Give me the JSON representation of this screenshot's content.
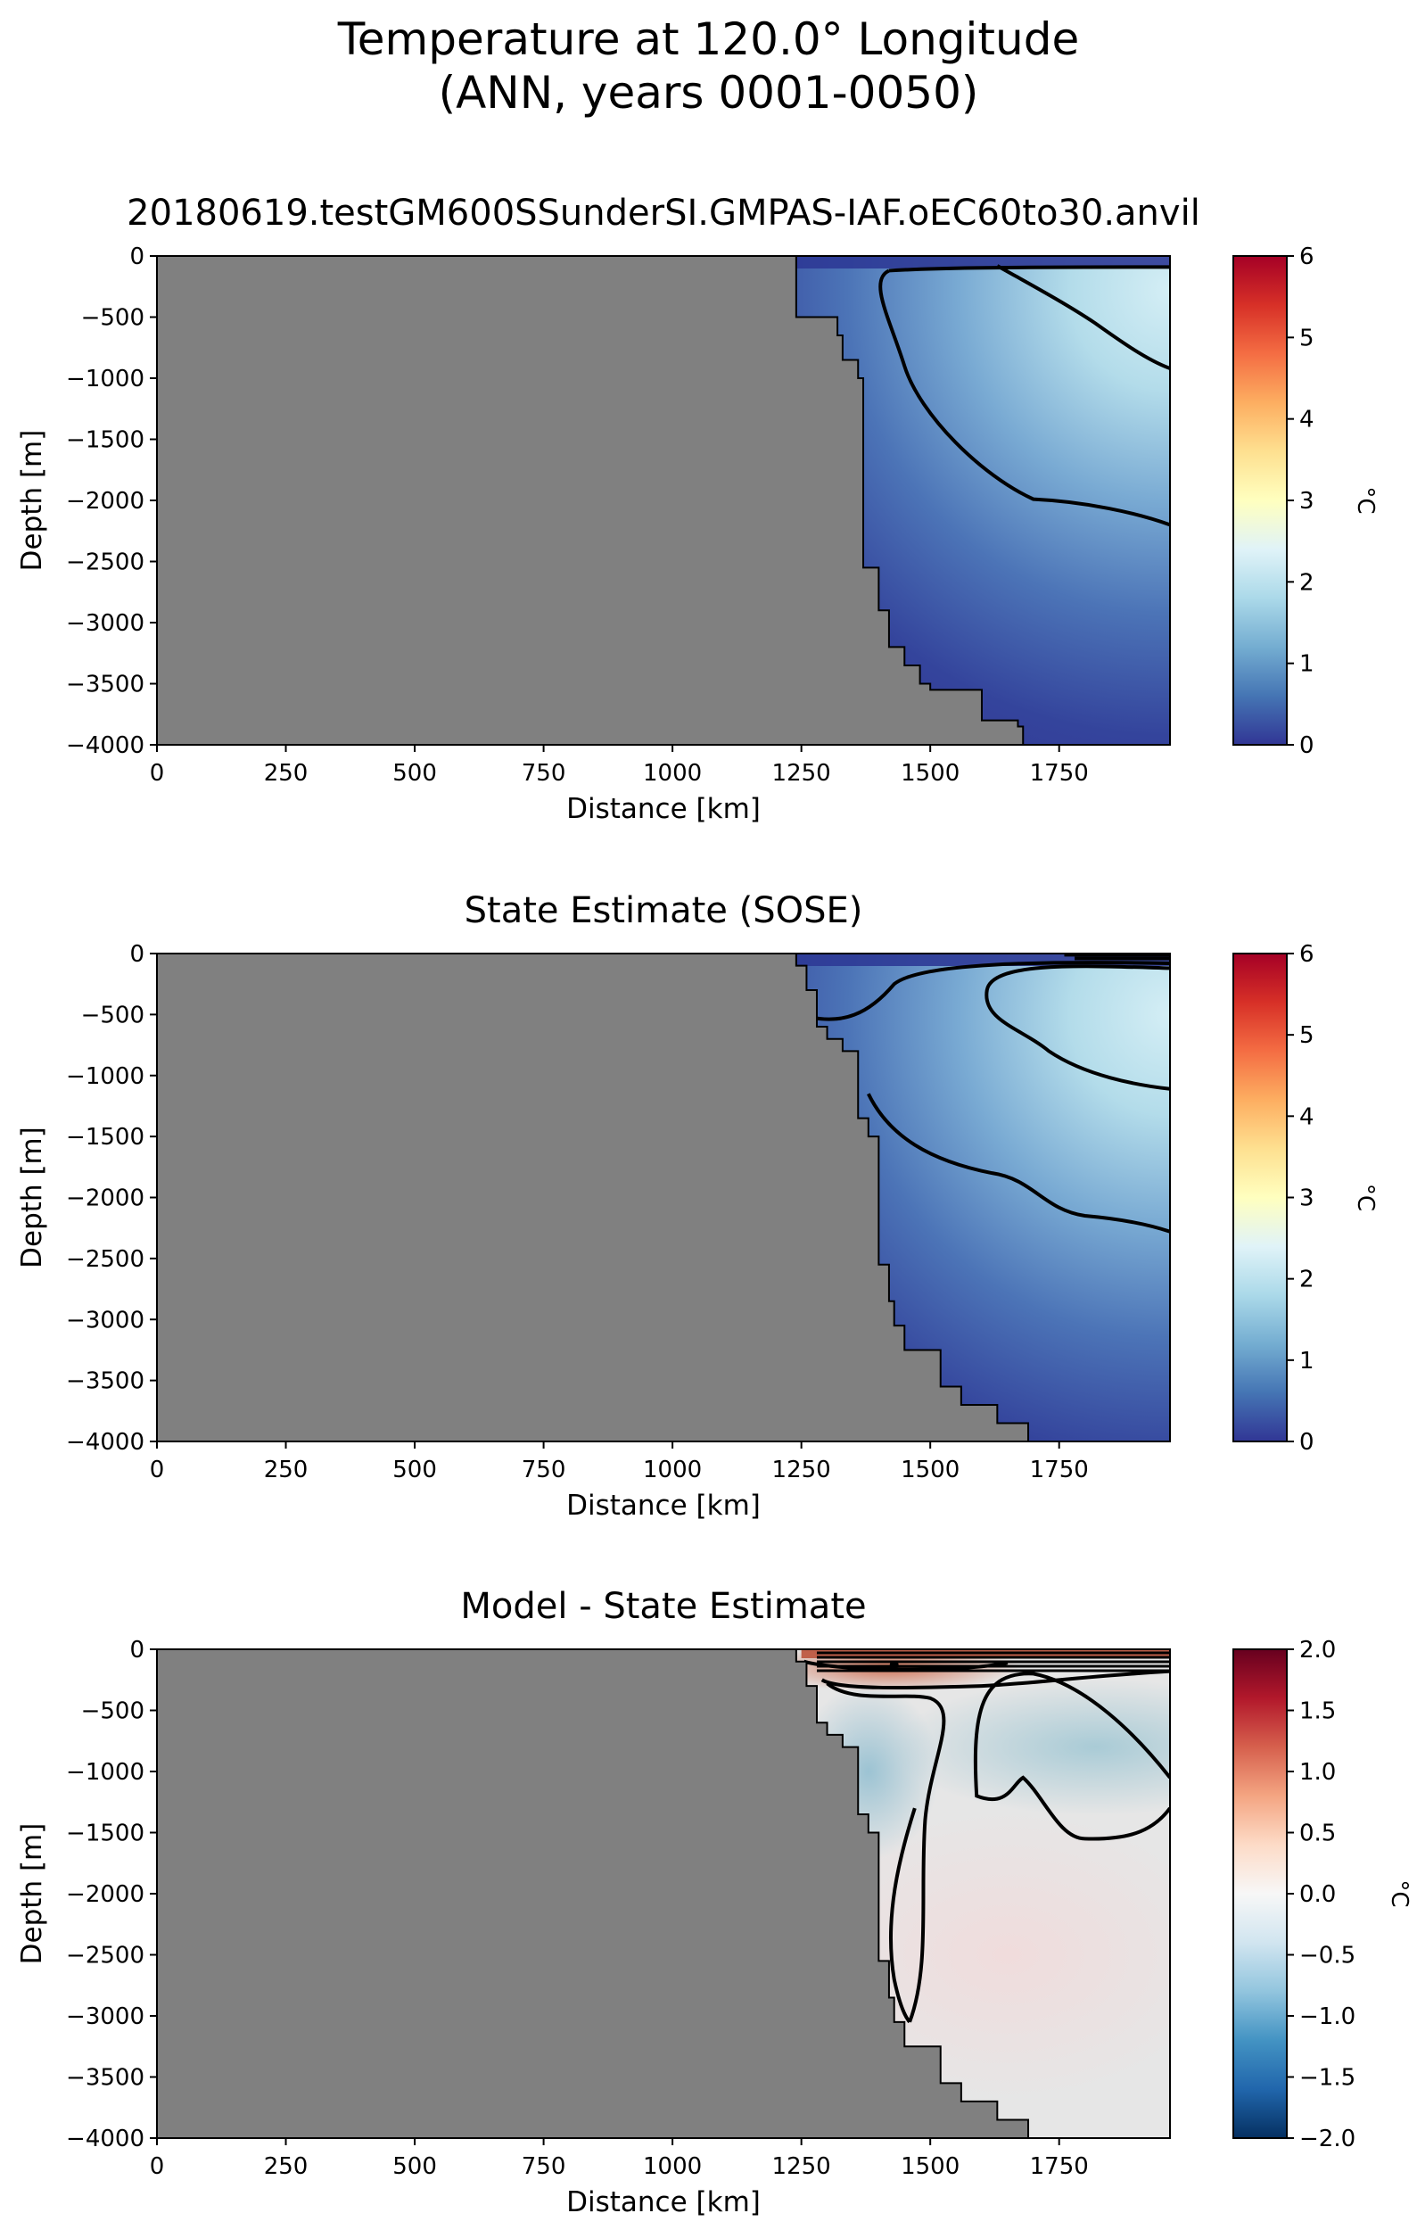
{
  "title_line1": "Temperature at 120.0° Longitude",
  "title_line2": "(ANN, years 0001-0050)",
  "chart_data": [
    {
      "type": "heatmap",
      "title": "20180619.testGM600SSunderSI.GMPAS-IAF.oEC60to30.anvil",
      "xlabel": "Distance [km]",
      "ylabel": "Depth [m]",
      "xlim": [
        0,
        1965
      ],
      "ylim": [
        -4000,
        0
      ],
      "xticks": [
        0,
        250,
        500,
        750,
        1000,
        1250,
        1500,
        1750
      ],
      "yticks": [
        0,
        -500,
        -1000,
        -1500,
        -2000,
        -2500,
        -3000,
        -3500,
        -4000
      ],
      "colorbar": {
        "label": "°C",
        "min": 0,
        "max": 6,
        "ticks": [
          0,
          1,
          2,
          3,
          4,
          5,
          6
        ],
        "colormap": "RdYlBu_r"
      },
      "contour_levels": [
        0.5,
        1.0,
        2.0
      ],
      "land_color": "#808080",
      "bathymetry": [
        [
          1240,
          0
        ],
        [
          1240,
          -500
        ],
        [
          1320,
          -500
        ],
        [
          1320,
          -650
        ],
        [
          1330,
          -650
        ],
        [
          1330,
          -850
        ],
        [
          1360,
          -850
        ],
        [
          1360,
          -1000
        ],
        [
          1370,
          -1000
        ],
        [
          1370,
          -2550
        ],
        [
          1400,
          -2550
        ],
        [
          1400,
          -2900
        ],
        [
          1420,
          -2900
        ],
        [
          1420,
          -3200
        ],
        [
          1450,
          -3200
        ],
        [
          1450,
          -3350
        ],
        [
          1480,
          -3350
        ],
        [
          1480,
          -3500
        ],
        [
          1500,
          -3500
        ],
        [
          1500,
          -3550
        ],
        [
          1600,
          -3550
        ],
        [
          1600,
          -3800
        ],
        [
          1670,
          -3800
        ],
        [
          1670,
          -3850
        ],
        [
          1680,
          -3850
        ],
        [
          1680,
          -4000
        ]
      ],
      "field": {
        "peak": {
          "x": 1965,
          "depth": -280,
          "value": 2.3
        },
        "surface_value": 0.15,
        "deep_value": 0.15
      }
    },
    {
      "type": "heatmap",
      "title": "State Estimate (SOSE)",
      "xlabel": "Distance [km]",
      "ylabel": "Depth [m]",
      "xlim": [
        0,
        1965
      ],
      "ylim": [
        -4000,
        0
      ],
      "xticks": [
        0,
        250,
        500,
        750,
        1000,
        1250,
        1500,
        1750
      ],
      "yticks": [
        0,
        -500,
        -1000,
        -1500,
        -2000,
        -2500,
        -3000,
        -3500,
        -4000
      ],
      "colorbar": {
        "label": "°C",
        "min": 0,
        "max": 6,
        "ticks": [
          0,
          1,
          2,
          3,
          4,
          5,
          6
        ],
        "colormap": "RdYlBu_r"
      },
      "contour_levels": [
        0.5,
        1.0,
        2.0
      ],
      "land_color": "#808080",
      "bathymetry": [
        [
          1240,
          0
        ],
        [
          1240,
          -100
        ],
        [
          1260,
          -100
        ],
        [
          1260,
          -300
        ],
        [
          1280,
          -300
        ],
        [
          1280,
          -600
        ],
        [
          1300,
          -600
        ],
        [
          1300,
          -700
        ],
        [
          1330,
          -700
        ],
        [
          1330,
          -800
        ],
        [
          1360,
          -800
        ],
        [
          1360,
          -1350
        ],
        [
          1380,
          -1350
        ],
        [
          1380,
          -1500
        ],
        [
          1400,
          -1500
        ],
        [
          1400,
          -2550
        ],
        [
          1420,
          -2550
        ],
        [
          1420,
          -2850
        ],
        [
          1430,
          -2850
        ],
        [
          1430,
          -3050
        ],
        [
          1450,
          -3050
        ],
        [
          1450,
          -3250
        ],
        [
          1520,
          -3250
        ],
        [
          1520,
          -3550
        ],
        [
          1560,
          -3550
        ],
        [
          1560,
          -3700
        ],
        [
          1630,
          -3700
        ],
        [
          1630,
          -3850
        ],
        [
          1690,
          -3850
        ],
        [
          1690,
          -4000
        ]
      ],
      "field": {
        "peak": {
          "x": 1965,
          "depth": -500,
          "value": 2.1
        },
        "surface_value": 0.15,
        "deep_value": 0.15
      }
    },
    {
      "type": "heatmap",
      "title": "Model - State Estimate",
      "xlabel": "Distance [km]",
      "ylabel": "Depth [m]",
      "xlim": [
        0,
        1965
      ],
      "ylim": [
        -4000,
        0
      ],
      "xticks": [
        0,
        250,
        500,
        750,
        1000,
        1250,
        1500,
        1750
      ],
      "yticks": [
        0,
        -500,
        -1000,
        -1500,
        -2000,
        -2500,
        -3000,
        -3500,
        -4000
      ],
      "colorbar": {
        "label": "°C",
        "min": -2.0,
        "max": 2.0,
        "ticks": [
          -2.0,
          -1.5,
          -1.0,
          -0.5,
          0.0,
          0.5,
          1.0,
          1.5,
          2.0
        ],
        "colormap": "RdBu_r"
      },
      "contour_levels": [
        -0.25,
        0.0,
        0.25
      ],
      "land_color": "#808080",
      "bathymetry": [
        [
          1240,
          0
        ],
        [
          1240,
          -100
        ],
        [
          1260,
          -100
        ],
        [
          1260,
          -300
        ],
        [
          1280,
          -300
        ],
        [
          1280,
          -600
        ],
        [
          1300,
          -600
        ],
        [
          1300,
          -700
        ],
        [
          1330,
          -700
        ],
        [
          1330,
          -800
        ],
        [
          1360,
          -800
        ],
        [
          1360,
          -1350
        ],
        [
          1380,
          -1350
        ],
        [
          1380,
          -1500
        ],
        [
          1400,
          -1500
        ],
        [
          1400,
          -2550
        ],
        [
          1420,
          -2550
        ],
        [
          1420,
          -2850
        ],
        [
          1430,
          -2850
        ],
        [
          1430,
          -3050
        ],
        [
          1450,
          -3050
        ],
        [
          1450,
          -3250
        ],
        [
          1520,
          -3250
        ],
        [
          1520,
          -3550
        ],
        [
          1560,
          -3550
        ],
        [
          1560,
          -3700
        ],
        [
          1630,
          -3700
        ],
        [
          1630,
          -3850
        ],
        [
          1690,
          -3850
        ],
        [
          1690,
          -4000
        ]
      ],
      "field": {
        "warm_surface": {
          "x": 1420,
          "depth": -150,
          "value": 0.7
        },
        "cold_patch": {
          "x": 1820,
          "depth": -800,
          "value": -0.3
        },
        "cold_shelf": {
          "x": 1380,
          "depth": -1000,
          "value": -0.35
        },
        "deep_warm": {
          "x": 1650,
          "depth": -2500,
          "value": 0.08
        }
      }
    }
  ]
}
